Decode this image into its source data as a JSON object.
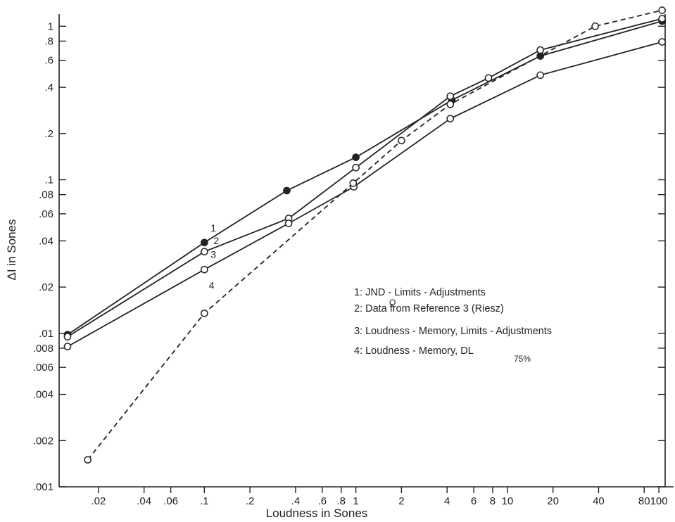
{
  "chart_data": {
    "type": "line",
    "title": "",
    "xlabel": "Loudness in Sones",
    "ylabel": "ΔI in Sones",
    "x_scale": "log",
    "y_scale": "log",
    "xlim": [
      0.011,
      110
    ],
    "ylim": [
      0.001,
      1.2
    ],
    "grid": false,
    "x_ticks": [
      {
        "value": 0.02,
        "label": ".02"
      },
      {
        "value": 0.04,
        "label": ".04"
      },
      {
        "value": 0.06,
        "label": ".06"
      },
      {
        "value": 0.1,
        "label": ".1"
      },
      {
        "value": 0.2,
        "label": ".2"
      },
      {
        "value": 0.4,
        "label": ".4"
      },
      {
        "value": 0.6,
        "label": ".6"
      },
      {
        "value": 0.8,
        "label": ".8"
      },
      {
        "value": 1,
        "label": "1"
      },
      {
        "value": 2,
        "label": "2"
      },
      {
        "value": 4,
        "label": "4"
      },
      {
        "value": 6,
        "label": "6"
      },
      {
        "value": 8,
        "label": "8"
      },
      {
        "value": 10,
        "label": "10"
      },
      {
        "value": 20,
        "label": "20"
      },
      {
        "value": 40,
        "label": "40"
      },
      {
        "value": 80,
        "label": "80"
      },
      {
        "value": 100,
        "label": "100"
      }
    ],
    "y_ticks": [
      {
        "value": 0.001,
        "label": ".001"
      },
      {
        "value": 0.002,
        "label": ".002"
      },
      {
        "value": 0.004,
        "label": ".004"
      },
      {
        "value": 0.006,
        "label": ".006"
      },
      {
        "value": 0.008,
        "label": ".008"
      },
      {
        "value": 0.01,
        "label": ".01"
      },
      {
        "value": 0.02,
        "label": ".02"
      },
      {
        "value": 0.04,
        "label": ".04"
      },
      {
        "value": 0.06,
        "label": ".06"
      },
      {
        "value": 0.08,
        "label": ".08"
      },
      {
        "value": 0.1,
        "label": ".1"
      },
      {
        "value": 0.2,
        "label": ".2"
      },
      {
        "value": 0.4,
        "label": ".4"
      },
      {
        "value": 0.6,
        "label": ".6"
      },
      {
        "value": 0.8,
        "label": ".8"
      },
      {
        "value": 1,
        "label": "1"
      }
    ],
    "series": [
      {
        "name": "1",
        "marker": "filled",
        "dashed": false,
        "x": [
          0.0125,
          0.1,
          0.35,
          1.0,
          4.3,
          16.5,
          105
        ],
        "y": [
          0.0098,
          0.039,
          0.085,
          0.14,
          0.33,
          0.64,
          1.08
        ]
      },
      {
        "name": "2",
        "marker": "open",
        "dashed": false,
        "x": [
          0.0125,
          0.1,
          0.36,
          1.0,
          4.2,
          7.5,
          16.5,
          105
        ],
        "y": [
          0.0095,
          0.034,
          0.056,
          0.12,
          0.35,
          0.46,
          0.7,
          1.12
        ]
      },
      {
        "name": "3",
        "marker": "open",
        "dashed": false,
        "x": [
          0.0125,
          0.1,
          0.36,
          0.97,
          4.2,
          16.5,
          105
        ],
        "y": [
          0.0082,
          0.026,
          0.052,
          0.09,
          0.25,
          0.48,
          0.79
        ]
      },
      {
        "name": "4",
        "marker": "open",
        "dashed": true,
        "x": [
          0.017,
          0.1,
          0.96,
          2.0,
          4.2,
          38,
          105
        ],
        "y": [
          0.0015,
          0.0135,
          0.095,
          0.18,
          0.31,
          1.0,
          1.27
        ]
      }
    ],
    "series_labels": [
      {
        "text": "1",
        "at": [
          0.11,
          0.046
        ]
      },
      {
        "text": "2",
        "at": [
          0.115,
          0.038
        ]
      },
      {
        "text": "3",
        "at": [
          0.11,
          0.031
        ]
      },
      {
        "text": "4",
        "at": [
          0.107,
          0.0195
        ]
      }
    ],
    "legend": {
      "placement": "center-right",
      "entries": [
        {
          "key": "1",
          "text": "1: JND  - Limits - Adjustments",
          "subscript": "Q"
        },
        {
          "key": "2",
          "text": "2: Data  from Reference 3 (Riesz)"
        },
        {
          "key": "3",
          "text": "3: Loudness - Memory, Limits - Adjustments"
        },
        {
          "key": "4",
          "text": "4: Loudness - Memory, DL",
          "subscript": "75%"
        }
      ]
    }
  }
}
